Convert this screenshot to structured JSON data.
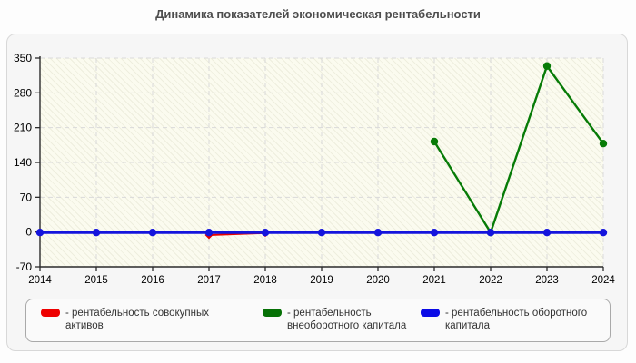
{
  "chart_data": {
    "type": "line",
    "title": "Динамика показателей экономическая рентабельности",
    "x_categories": [
      2014,
      2015,
      2016,
      2017,
      2018,
      2019,
      2020,
      2021,
      2022,
      2023,
      2024
    ],
    "xlabel": "",
    "ylabel": "",
    "ylim": [
      -70,
      350
    ],
    "yticks": [
      350,
      280,
      210,
      140,
      70,
      0,
      -70
    ],
    "grid": true,
    "grid_style": "dashed",
    "grid_color": "#d9d9d9",
    "axis_color": "#2b2b2b",
    "plot_background": "#fbfbef",
    "legend_position": "bottom",
    "series": [
      {
        "name": "рентабельность совокупных активов",
        "color": "#e60000",
        "marker": "diamond",
        "segments": [
          {
            "x": [
              2014
            ],
            "values": [
              -1
            ]
          },
          {
            "x": [
              2017,
              2018
            ],
            "values": [
              -6,
              -2
            ]
          }
        ]
      },
      {
        "name": "рентабельность внеоборотного капитала",
        "color": "#077b07",
        "marker": "circle",
        "segments": [
          {
            "x": [
              2021,
              2022,
              2023,
              2024
            ],
            "values": [
              182,
              -1,
              334,
              178
            ]
          }
        ]
      },
      {
        "name": "рентабельность оборотного капитала",
        "color": "#1414dd",
        "marker": "circle",
        "segments": [
          {
            "x": [
              2014,
              2015,
              2016,
              2017,
              2018,
              2019,
              2020,
              2021,
              2022,
              2023,
              2024
            ],
            "values": [
              -1,
              -1,
              -1,
              -1,
              -1,
              -1,
              -1,
              -1,
              -1,
              -1,
              -1
            ]
          }
        ]
      }
    ],
    "legend": [
      {
        "label": "- рентабельность совокупных активов",
        "color": "#ee0000"
      },
      {
        "label": "- рентабельность внеоборотного капитала",
        "color": "#067106"
      },
      {
        "label": "- рентабельность оборотного капитала",
        "color": "#0a0ae6"
      }
    ]
  }
}
